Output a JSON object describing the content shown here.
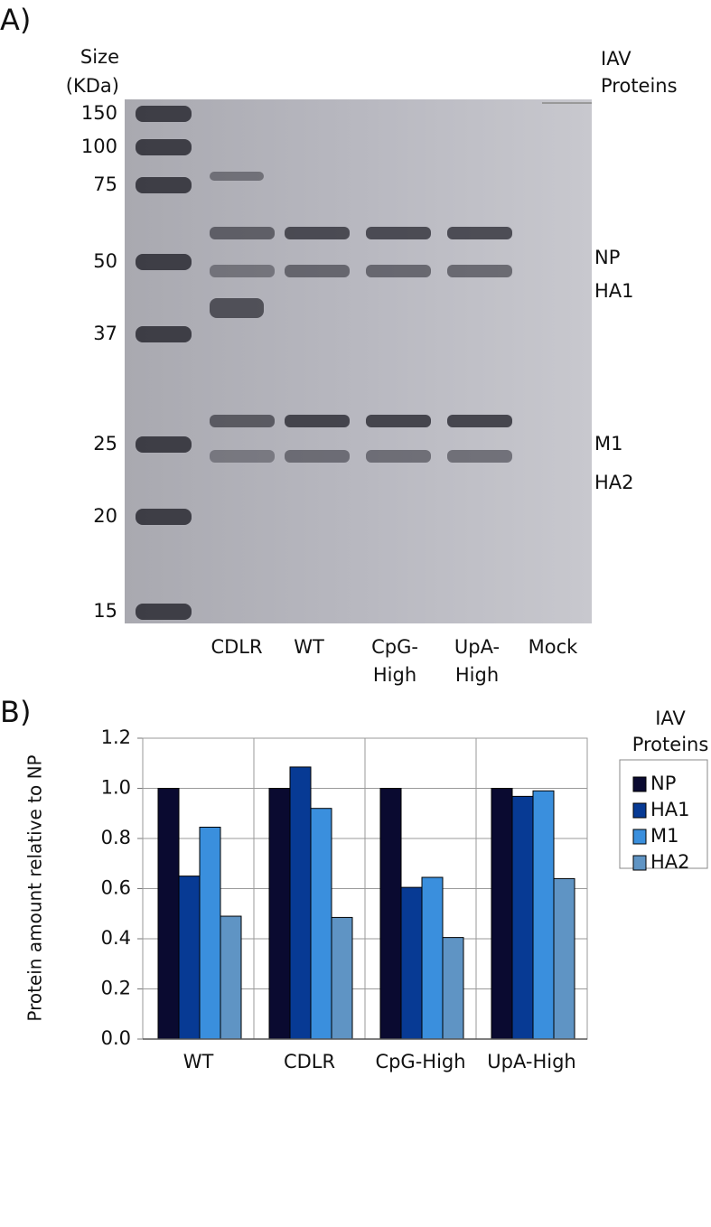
{
  "panel_a": {
    "label": "A)",
    "size_title": [
      "Size",
      "(KDa)"
    ],
    "protein_title": [
      "IAV",
      "Proteins"
    ],
    "sizes": [
      "150",
      "100",
      "75",
      "50",
      "37",
      "25",
      "20",
      "15"
    ],
    "proteins": [
      "NP",
      "HA1",
      "M1",
      "HA2"
    ],
    "lanes": [
      [
        "CDLR"
      ],
      [
        "WT"
      ],
      [
        "CpG-",
        "High"
      ],
      [
        "UpA-",
        "High"
      ],
      [
        "Mock"
      ]
    ]
  },
  "chart_data": {
    "type": "bar",
    "panel_label": "B)",
    "ylabel": "Protein amount relative to NP",
    "categories": [
      "WT",
      "CDLR",
      "CpG-High",
      "UpA-High"
    ],
    "legend_title": [
      "IAV",
      "Proteins"
    ],
    "series": [
      {
        "name": "NP",
        "color": "#0a0a30",
        "values": [
          1.0,
          1.0,
          1.0,
          1.0
        ]
      },
      {
        "name": "HA1",
        "color": "#073a94",
        "values": [
          0.65,
          1.085,
          0.605,
          0.968
        ]
      },
      {
        "name": "M1",
        "color": "#3a8fdd",
        "values": [
          0.845,
          0.92,
          0.645,
          0.99
        ]
      },
      {
        "name": "HA2",
        "color": "#5f94c4",
        "values": [
          0.49,
          0.485,
          0.405,
          0.64
        ]
      }
    ],
    "ylim": [
      0,
      1.2
    ],
    "yticks": [
      {
        "value": 0,
        "label": "0.0"
      },
      0.2,
      0.4,
      0.6,
      0.8,
      {
        "value": 1,
        "label": "1.0"
      },
      1.2
    ],
    "grid": true,
    "legend": "right"
  }
}
